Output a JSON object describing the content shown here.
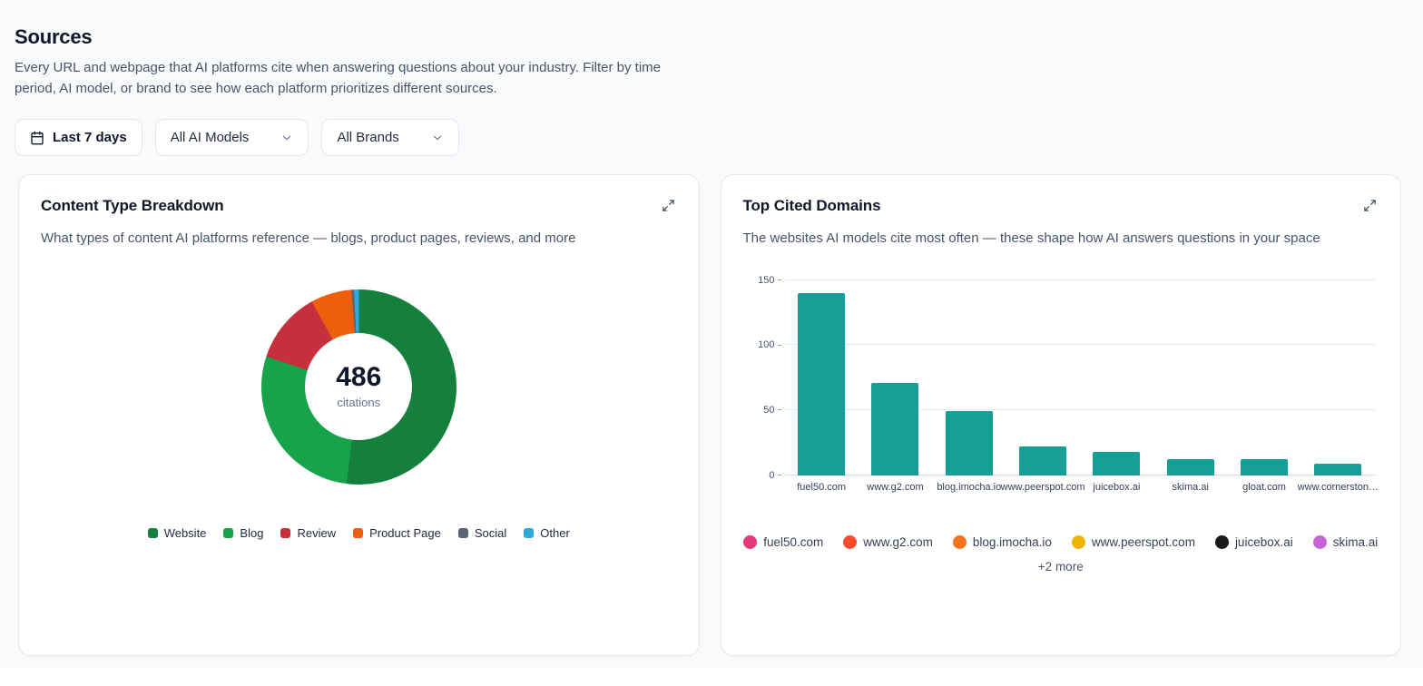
{
  "page": {
    "title": "Sources",
    "subtitle": "Every URL and webpage that AI platforms cite when answering questions about your industry. Filter by time period, AI model, or brand to see how each platform prioritizes different sources."
  },
  "filters": {
    "date_range": "Last 7 days",
    "ai_model": "All AI Models",
    "brand": "All Brands"
  },
  "content_type_card": {
    "title": "Content Type Breakdown",
    "subtitle": "What types of content AI platforms reference — blogs, product pages, reviews, and more",
    "center_value": "486",
    "center_label": "citations"
  },
  "top_domains_card": {
    "title": "Top Cited Domains",
    "subtitle": "The websites AI models cite most often — these shape how AI answers questions in your space",
    "more_label": "+2 more",
    "favicons": [
      {
        "domain": "fuel50.com",
        "color": "#e5397f"
      },
      {
        "domain": "www.g2.com",
        "color": "#ff492c"
      },
      {
        "domain": "blog.imocha.io",
        "color": "#f4731c"
      },
      {
        "domain": "www.peerspot.com",
        "color": "#f0b400"
      },
      {
        "domain": "juicebox.ai",
        "color": "#1a1a1a"
      },
      {
        "domain": "skima.ai",
        "color": "#c665d8"
      }
    ]
  },
  "chart_data": [
    {
      "type": "pie",
      "title": "Content Type Breakdown",
      "total": 486,
      "center_label": "citations",
      "segments": [
        {
          "label": "Website",
          "value": 253,
          "color": "#15803d"
        },
        {
          "label": "Blog",
          "value": 136,
          "color": "#16a34a"
        },
        {
          "label": "Review",
          "value": 58,
          "color": "#c5303c"
        },
        {
          "label": "Product Page",
          "value": 33,
          "color": "#ee5f0d"
        },
        {
          "label": "Social",
          "value": 2,
          "color": "#5b6672"
        },
        {
          "label": "Other",
          "value": 4,
          "color": "#2da9dd"
        }
      ],
      "legend_position": "bottom"
    },
    {
      "type": "bar",
      "title": "Top Cited Domains",
      "categories": [
        "fuel50.com",
        "www.g2.com",
        "blog.imocha.io",
        "www.peerspot.com",
        "juicebox.ai",
        "skima.ai",
        "gloat.com",
        "www.cornerston…"
      ],
      "values": [
        140,
        71,
        49,
        22,
        18,
        12,
        12,
        9
      ],
      "bar_color": "#14a096",
      "xlabel": "",
      "ylabel": "",
      "ylim": [
        0,
        150
      ],
      "yticks": [
        0,
        50,
        100,
        150
      ],
      "grid": true
    }
  ]
}
